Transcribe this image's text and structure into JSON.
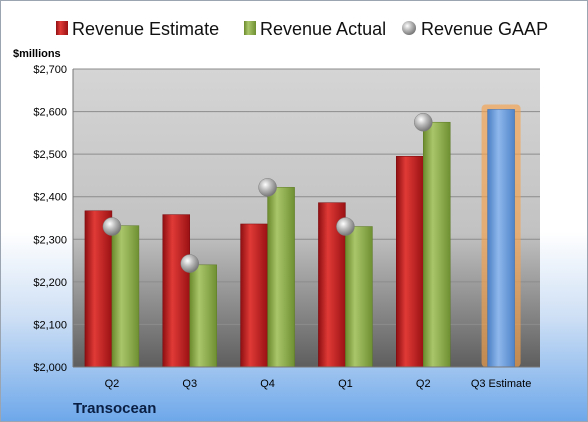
{
  "chart_data": {
    "type": "bar",
    "company": "Transocean",
    "y_unit_label": "$millions",
    "categories": [
      "Q2",
      "Q3",
      "Q4",
      "Q1",
      "Q2",
      "Q3 Estimate"
    ],
    "series": [
      {
        "name": "Revenue Estimate",
        "values": [
          2367,
          2358,
          2336,
          2386,
          2495,
          null
        ]
      },
      {
        "name": "Revenue Actual",
        "values": [
          2332,
          2240,
          2422,
          2330,
          2575,
          null
        ]
      },
      {
        "name": "Revenue GAAP",
        "values": [
          2330,
          2243,
          2422,
          2330,
          2575,
          null
        ]
      }
    ],
    "forecast": {
      "category": "Q3 Estimate",
      "value": 2605
    },
    "ylim": [
      2000,
      2700
    ],
    "y_ticks": [
      "$2,000",
      "$2,100",
      "$2,200",
      "$2,300",
      "$2,400",
      "$2,500",
      "$2,600",
      "$2,700"
    ],
    "grid": true,
    "legend_position": "top",
    "colors": {
      "estimate": "#c0141b",
      "actual": "#8fae4a",
      "gaap": "#a9a9a9",
      "forecast": "#6d9edb",
      "forecast_glow": "#f5a24b"
    }
  }
}
